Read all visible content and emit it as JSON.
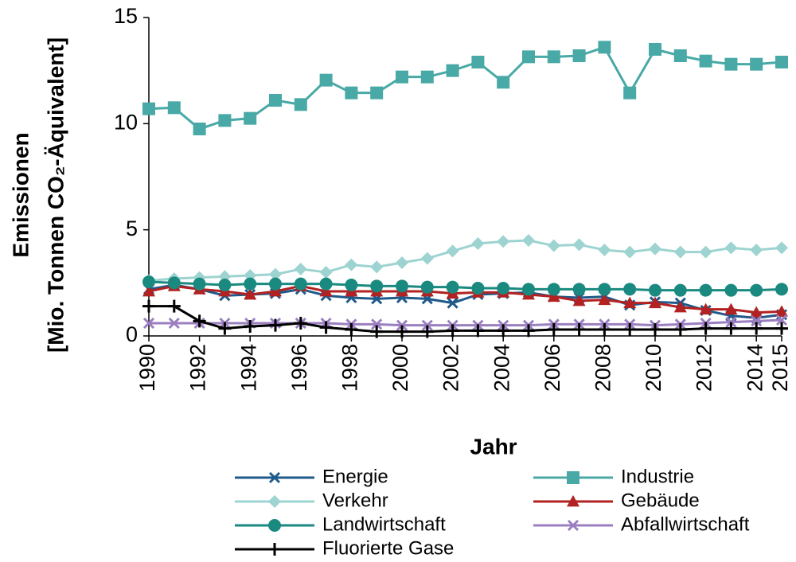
{
  "chart_data": {
    "type": "line",
    "xlabel": "Jahr",
    "ylabel": [
      "Emissionen",
      "[Mio. Tonnen CO₂-Äquivalent]"
    ],
    "x": [
      1990,
      1991,
      1992,
      1993,
      1994,
      1995,
      1996,
      1997,
      1998,
      1999,
      2000,
      2001,
      2002,
      2003,
      2004,
      2005,
      2006,
      2007,
      2008,
      2009,
      2010,
      2011,
      2012,
      2013,
      2014,
      2015
    ],
    "xlim": [
      1990,
      2015
    ],
    "xticks": [
      1990,
      1992,
      1994,
      1996,
      1998,
      2000,
      2002,
      2004,
      2006,
      2008,
      2010,
      2012,
      2014,
      2015
    ],
    "ylim": [
      0,
      15
    ],
    "yticks": [
      0,
      5,
      10,
      15
    ],
    "grid": false,
    "legend": "bottom",
    "series": [
      {
        "name": "Energie",
        "color": "#1f5a8a",
        "marker": "x",
        "values": [
          2.2,
          2.4,
          2.2,
          1.9,
          1.95,
          2.0,
          2.2,
          1.9,
          1.8,
          1.75,
          1.8,
          1.75,
          1.55,
          1.95,
          2.0,
          2.05,
          1.85,
          1.8,
          1.85,
          1.45,
          1.6,
          1.55,
          1.2,
          0.95,
          0.85,
          1.0
        ]
      },
      {
        "name": "Industrie",
        "color": "#48a9a6",
        "marker": "s",
        "values": [
          10.7,
          10.75,
          9.75,
          10.15,
          10.25,
          11.1,
          10.9,
          12.05,
          11.45,
          11.45,
          12.2,
          12.2,
          12.5,
          12.9,
          11.95,
          13.15,
          13.15,
          13.2,
          13.6,
          11.45,
          13.5,
          13.2,
          12.95,
          12.8,
          12.8,
          12.9
        ]
      },
      {
        "name": "Verkehr",
        "color": "#9dd3d0",
        "marker": "D",
        "values": [
          2.6,
          2.7,
          2.75,
          2.8,
          2.85,
          2.9,
          3.15,
          3.0,
          3.35,
          3.25,
          3.45,
          3.65,
          4.0,
          4.35,
          4.45,
          4.5,
          4.25,
          4.3,
          4.05,
          3.95,
          4.1,
          3.95,
          3.95,
          4.15,
          4.05,
          4.15
        ]
      },
      {
        "name": "Gebäude",
        "color": "#b22222",
        "marker": "^",
        "values": [
          2.1,
          2.35,
          2.2,
          2.1,
          1.95,
          2.1,
          2.35,
          2.1,
          2.1,
          2.1,
          2.1,
          2.1,
          2.0,
          2.05,
          2.05,
          1.95,
          1.85,
          1.65,
          1.7,
          1.55,
          1.55,
          1.35,
          1.25,
          1.25,
          1.1,
          1.15
        ]
      },
      {
        "name": "Landwirtschaft",
        "color": "#1a8a80",
        "marker": "o",
        "values": [
          2.55,
          2.5,
          2.45,
          2.4,
          2.45,
          2.45,
          2.45,
          2.45,
          2.4,
          2.35,
          2.35,
          2.3,
          2.3,
          2.25,
          2.25,
          2.2,
          2.2,
          2.2,
          2.2,
          2.2,
          2.15,
          2.15,
          2.15,
          2.15,
          2.15,
          2.2
        ]
      },
      {
        "name": "Abfallwirtschaft",
        "color": "#9b7fc0",
        "marker": "x",
        "values": [
          0.6,
          0.6,
          0.6,
          0.6,
          0.6,
          0.6,
          0.6,
          0.6,
          0.55,
          0.55,
          0.5,
          0.5,
          0.5,
          0.5,
          0.5,
          0.5,
          0.55,
          0.55,
          0.55,
          0.55,
          0.5,
          0.55,
          0.6,
          0.65,
          0.7,
          0.75
        ]
      },
      {
        "name": "Fluorierte Gase",
        "color": "#000000",
        "marker": "+",
        "values": [
          1.4,
          1.4,
          0.7,
          0.35,
          0.45,
          0.5,
          0.6,
          0.4,
          0.3,
          0.2,
          0.2,
          0.2,
          0.25,
          0.25,
          0.25,
          0.25,
          0.3,
          0.3,
          0.3,
          0.3,
          0.3,
          0.3,
          0.35,
          0.35,
          0.35,
          0.35
        ]
      }
    ]
  }
}
